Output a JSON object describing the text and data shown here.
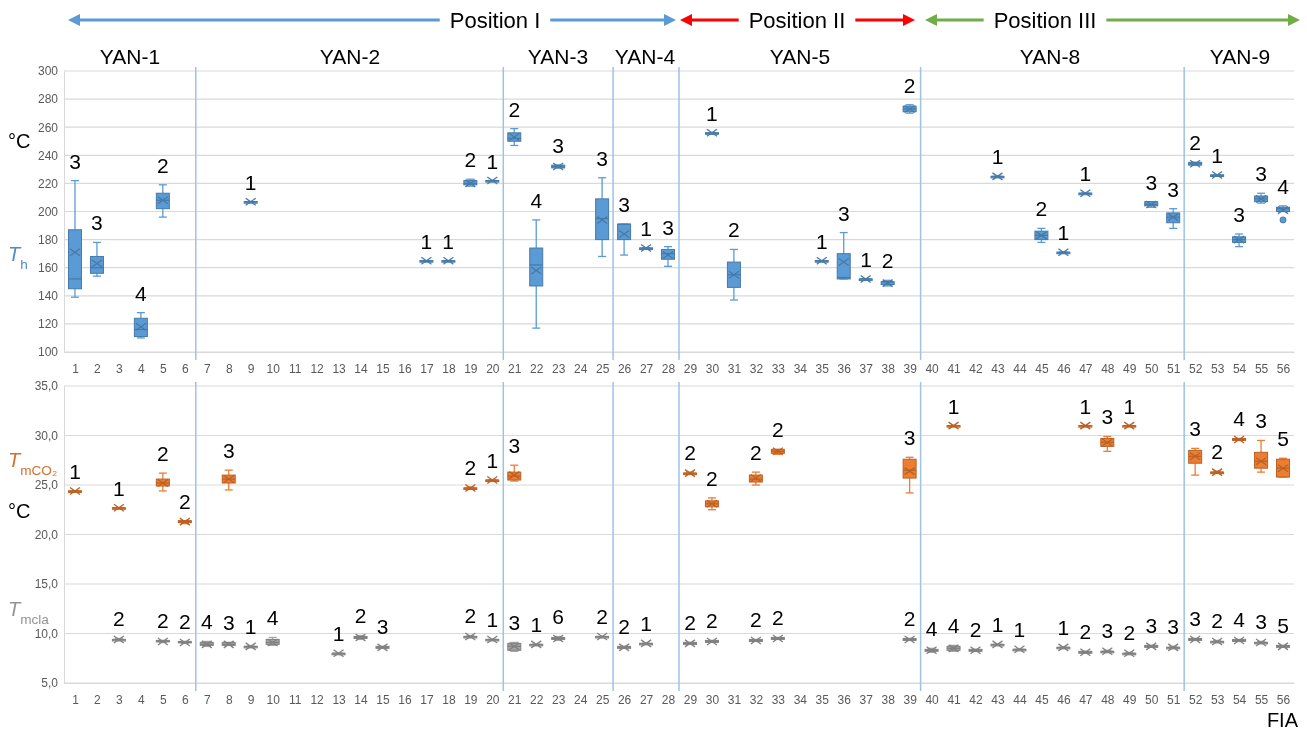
{
  "chart_data": [
    {
      "type": "box",
      "xlim": [
        0.5,
        56.5
      ],
      "xticks": [
        1,
        2,
        3,
        4,
        5,
        6,
        7,
        8,
        9,
        10,
        11,
        12,
        13,
        14,
        15,
        16,
        17,
        18,
        19,
        20,
        21,
        22,
        23,
        24,
        25,
        26,
        27,
        28,
        29,
        30,
        31,
        32,
        33,
        34,
        35,
        36,
        37,
        38,
        39,
        40,
        41,
        42,
        43,
        44,
        45,
        46,
        47,
        48,
        49,
        50,
        51,
        52,
        53,
        54,
        55,
        56
      ],
      "ylim": [
        100,
        300
      ],
      "yticks": [
        100,
        120,
        140,
        160,
        180,
        200,
        220,
        240,
        260,
        280,
        300
      ],
      "grid": "y",
      "ylabel": "°C",
      "series": [
        {
          "name": "T$_{h}$",
          "color": "#5b9bd5",
          "x": [
            1,
            2,
            4,
            5,
            9,
            17,
            18,
            19,
            20,
            21,
            22,
            23,
            25,
            26,
            27,
            28,
            30,
            31,
            35,
            36,
            37,
            38,
            39,
            43,
            45,
            46,
            47,
            50,
            51,
            52,
            53,
            54,
            55,
            56
          ],
          "boxes": [
            {
              "low": 139,
              "q1": 145,
              "median": 152,
              "q3": 187,
              "high": 222,
              "mean": 171
            },
            {
              "low": 154,
              "q1": 156,
              "median": 160,
              "q3": 168,
              "high": 178,
              "mean": 163
            },
            {
              "low": 110,
              "q1": 111,
              "median": 116,
              "q3": 124,
              "high": 128,
              "mean": 118
            },
            {
              "low": 196,
              "q1": 202,
              "median": 208,
              "q3": 213,
              "high": 219,
              "mean": 208
            },
            {
              "low": 207,
              "q1": 207,
              "median": 207,
              "q3": 207,
              "high": 207,
              "mean": 207
            },
            {
              "low": 165,
              "q1": 165,
              "median": 165,
              "q3": 165,
              "high": 165,
              "mean": 165
            },
            {
              "low": 165,
              "q1": 165,
              "median": 165,
              "q3": 165,
              "high": 165,
              "mean": 165
            },
            {
              "low": 218,
              "q1": 219,
              "median": 220,
              "q3": 222,
              "high": 223,
              "mean": 220
            },
            {
              "low": 222,
              "q1": 222,
              "median": 222,
              "q3": 222,
              "high": 222,
              "mean": 222
            },
            {
              "low": 247,
              "q1": 250,
              "median": 252,
              "q3": 256,
              "high": 259,
              "mean": 253
            },
            {
              "low": 117,
              "q1": 147,
              "median": 162,
              "q3": 174,
              "high": 194,
              "mean": 158
            },
            {
              "low": 231,
              "q1": 231,
              "median": 232,
              "q3": 233,
              "high": 233,
              "mean": 232
            },
            {
              "low": 168,
              "q1": 180,
              "median": 195,
              "q3": 209,
              "high": 224,
              "mean": 194
            },
            {
              "low": 169,
              "q1": 180,
              "median": 191,
              "q3": 191,
              "high": 191,
              "mean": 184
            },
            {
              "low": 174,
              "q1": 174,
              "median": 174,
              "q3": 174,
              "high": 174,
              "mean": 174
            },
            {
              "low": 161,
              "q1": 166,
              "median": 170,
              "q3": 173,
              "high": 175,
              "mean": 169
            },
            {
              "low": 256,
              "q1": 256,
              "median": 256,
              "q3": 256,
              "high": 256,
              "mean": 256
            },
            {
              "low": 137,
              "q1": 146,
              "median": 155,
              "q3": 164,
              "high": 173,
              "mean": 155
            },
            {
              "low": 165,
              "q1": 165,
              "median": 165,
              "q3": 165,
              "high": 165,
              "mean": 165
            },
            {
              "low": 152,
              "q1": 152,
              "median": 153,
              "q3": 170,
              "high": 185,
              "mean": 164
            },
            {
              "low": 152,
              "q1": 152,
              "median": 152,
              "q3": 152,
              "high": 152,
              "mean": 152
            },
            {
              "low": 147,
              "q1": 148,
              "median": 150,
              "q3": 150,
              "high": 151,
              "mean": 149
            },
            {
              "low": 270,
              "q1": 271,
              "median": 273,
              "q3": 275,
              "high": 276,
              "mean": 273
            },
            {
              "low": 225,
              "q1": 225,
              "median": 225,
              "q3": 225,
              "high": 225,
              "mean": 225
            },
            {
              "low": 178,
              "q1": 180,
              "median": 183,
              "q3": 186,
              "high": 188,
              "mean": 183
            },
            {
              "low": 171,
              "q1": 171,
              "median": 171,
              "q3": 171,
              "high": 171,
              "mean": 171
            },
            {
              "low": 213,
              "q1": 213,
              "median": 213,
              "q3": 213,
              "high": 213,
              "mean": 213
            },
            {
              "low": 203,
              "q1": 204,
              "median": 205,
              "q3": 207,
              "high": 207,
              "mean": 205
            },
            {
              "low": 188,
              "q1": 192,
              "median": 196,
              "q3": 199,
              "high": 202,
              "mean": 196
            },
            {
              "low": 233,
              "q1": 233,
              "median": 234,
              "q3": 235,
              "high": 235,
              "mean": 234
            },
            {
              "low": 226,
              "q1": 226,
              "median": 226,
              "q3": 226,
              "high": 226,
              "mean": 226
            },
            {
              "low": 175,
              "q1": 178,
              "median": 180,
              "q3": 182,
              "high": 184,
              "mean": 180
            },
            {
              "low": 206,
              "q1": 207,
              "median": 209,
              "q3": 211,
              "high": 213,
              "mean": 209
            },
            {
              "low": 200,
              "q1": 200,
              "median": 202,
              "q3": 203,
              "high": 204,
              "mean": 201,
              "outliers": [
                194
              ]
            }
          ]
        }
      ],
      "ref_lines": [
        {
          "axis": "x",
          "value": 6.5,
          "color": "#9dc3e6"
        },
        {
          "axis": "x",
          "value": 20.5,
          "color": "#9dc3e6"
        },
        {
          "axis": "x",
          "value": 25.5,
          "color": "#9dc3e6"
        },
        {
          "axis": "x",
          "value": 28.5,
          "color": "#9dc3e6"
        },
        {
          "axis": "x",
          "value": 39.5,
          "color": "#9dc3e6"
        },
        {
          "axis": "x",
          "value": 51.5,
          "color": "#9dc3e6"
        }
      ],
      "annotations": [
        "Position I",
        "Position II",
        "Position III",
        "YAN-1",
        "YAN-2",
        "YAN-3",
        "YAN-4",
        "YAN-5",
        "YAN-8",
        "YAN-9",
        "1",
        "1",
        {
          "text": "3",
          "x": 1,
          "y": 222
        },
        {
          "text": "3",
          "x": 2,
          "y": 178
        },
        {
          "text": "4",
          "x": 4,
          "y": 128
        },
        {
          "text": "2",
          "x": 5,
          "y": 219
        },
        {
          "text": "1",
          "x": 9,
          "y": 207
        },
        {
          "text": "1",
          "x": 17,
          "y": 165
        },
        {
          "text": "2",
          "x": 19,
          "y": 223
        },
        {
          "text": "1",
          "x": 20,
          "y": 222
        },
        {
          "text": "2",
          "x": 21,
          "y": 259
        },
        {
          "text": "4",
          "x": 22,
          "y": 194
        },
        {
          "text": "3",
          "x": 23,
          "y": 233
        },
        {
          "text": "3",
          "x": 25,
          "y": 224
        },
        {
          "text": "3",
          "x": 26,
          "y": 191
        },
        {
          "text": "1",
          "x": 27,
          "y": 174
        },
        {
          "text": "3",
          "x": 28,
          "y": 175
        },
        {
          "text": "1",
          "x": 30,
          "y": 256
        },
        {
          "text": "2",
          "x": 31,
          "y": 173
        },
        {
          "text": "1",
          "x": 35,
          "y": 165
        },
        {
          "text": "3",
          "x": 36,
          "y": 185
        },
        {
          "text": "2",
          "x": 38,
          "y": 151
        },
        {
          "text": "2",
          "x": 39,
          "y": 276
        },
        {
          "text": "1",
          "x": 43,
          "y": 225
        },
        {
          "text": "2",
          "x": 45,
          "y": 188
        },
        {
          "text": "1",
          "x": 46,
          "y": 171
        },
        {
          "text": "1",
          "x": 47,
          "y": 213
        },
        {
          "text": "3",
          "x": 50,
          "y": 207
        },
        {
          "text": "3",
          "x": 51,
          "y": 202
        },
        {
          "text": "2",
          "x": 52,
          "y": 235
        },
        {
          "text": "1",
          "x": 53,
          "y": 226
        },
        {
          "text": "3",
          "x": 54,
          "y": 184
        },
        {
          "text": "3",
          "x": 55,
          "y": 213
        },
        {
          "text": "4",
          "x": 56,
          "y": 204
        }
      ]
    },
    {
      "type": "box",
      "xlim": [
        0.5,
        56.5
      ],
      "xticks": [
        1,
        2,
        3,
        4,
        5,
        6,
        7,
        8,
        9,
        10,
        11,
        12,
        13,
        14,
        15,
        16,
        17,
        18,
        19,
        20,
        21,
        22,
        23,
        24,
        25,
        26,
        27,
        28,
        29,
        30,
        31,
        32,
        33,
        34,
        35,
        36,
        37,
        38,
        39,
        40,
        41,
        42,
        43,
        44,
        45,
        46,
        47,
        48,
        49,
        50,
        51,
        52,
        53,
        54,
        55,
        56
      ],
      "ylim": [
        5,
        35
      ],
      "yticks": [
        {
          "value": 5,
          "label": "5,0"
        },
        {
          "value": 10,
          "label": "10,0"
        },
        {
          "value": 15,
          "label": "15,0"
        },
        {
          "value": 20,
          "label": "20,0"
        },
        {
          "value": 25,
          "label": "25,0"
        },
        {
          "value": 30,
          "label": "30,0"
        },
        {
          "value": 35,
          "label": "35,0"
        }
      ],
      "grid": "y",
      "ylabel": "°C",
      "xlabel": "FIA",
      "series": [
        {
          "name": "T$_{mCO₂}$",
          "color": "#ed7d31",
          "x": [
            1,
            3,
            5,
            6,
            8,
            19,
            20,
            21,
            29,
            30,
            32,
            33,
            39,
            41,
            47,
            48,
            49,
            52,
            53,
            54,
            55,
            56
          ],
          "boxes": [
            {
              "low": 24.4,
              "q1": 24.4,
              "median": 24.4,
              "q3": 24.4,
              "high": 24.4,
              "mean": 24.4
            },
            {
              "low": 22.7,
              "q1": 22.7,
              "median": 22.7,
              "q3": 22.7,
              "high": 22.7,
              "mean": 22.7
            },
            {
              "low": 24.4,
              "q1": 24.9,
              "median": 25.2,
              "q3": 25.6,
              "high": 26.2,
              "mean": 25.2
            },
            {
              "low": 21.1,
              "q1": 21.2,
              "median": 21.3,
              "q3": 21.4,
              "high": 21.4,
              "mean": 21.3
            },
            {
              "low": 24.5,
              "q1": 25.2,
              "median": 25.6,
              "q3": 26,
              "high": 26.5,
              "mean": 25.6
            },
            {
              "low": 24.6,
              "q1": 24.6,
              "median": 24.7,
              "q3": 24.7,
              "high": 24.8,
              "mean": 24.7
            },
            {
              "low": 25.5,
              "q1": 25.5,
              "median": 25.5,
              "q3": 25.5,
              "high": 25.5,
              "mean": 25.5
            },
            {
              "low": 25.4,
              "q1": 25.5,
              "median": 25.9,
              "q3": 26.3,
              "high": 27,
              "mean": 26
            },
            {
              "low": 26.1,
              "q1": 26.1,
              "median": 26.2,
              "q3": 26.2,
              "high": 26.3,
              "mean": 26.2
            },
            {
              "low": 22.5,
              "q1": 22.8,
              "median": 23.1,
              "q3": 23.4,
              "high": 23.7,
              "mean": 23.1
            },
            {
              "low": 25,
              "q1": 25.3,
              "median": 25.6,
              "q3": 26,
              "high": 26.3,
              "mean": 25.7
            },
            {
              "low": 28.1,
              "q1": 28.2,
              "median": 28.4,
              "q3": 28.6,
              "high": 28.6,
              "mean": 28.4
            },
            {
              "low": 24.2,
              "q1": 25.7,
              "median": 26.5,
              "q3": 27.6,
              "high": 27.8,
              "mean": 26.4
            },
            {
              "low": 31,
              "q1": 31,
              "median": 31,
              "q3": 31,
              "high": 31,
              "mean": 31
            },
            {
              "low": 31,
              "q1": 31,
              "median": 31,
              "q3": 31,
              "high": 31,
              "mean": 31
            },
            {
              "low": 28.4,
              "q1": 28.9,
              "median": 29.3,
              "q3": 29.7,
              "high": 29.9,
              "mean": 29.3
            },
            {
              "low": 31,
              "q1": 31,
              "median": 31,
              "q3": 31,
              "high": 31,
              "mean": 31
            },
            {
              "low": 26,
              "q1": 27.2,
              "median": 27.9,
              "q3": 28.5,
              "high": 28.7,
              "mean": 27.9
            },
            {
              "low": 26.2,
              "q1": 26.2,
              "median": 26.3,
              "q3": 26.3,
              "high": 26.4,
              "mean": 26.3
            },
            {
              "low": 29.5,
              "q1": 29.5,
              "median": 29.6,
              "q3": 29.7,
              "high": 29.7,
              "mean": 29.6
            },
            {
              "low": 26.3,
              "q1": 26.7,
              "median": 27.4,
              "q3": 28.3,
              "high": 29.5,
              "mean": 27.4
            },
            {
              "low": 25.8,
              "q1": 25.8,
              "median": 26.7,
              "q3": 27.6,
              "high": 27.7,
              "mean": 26.7
            }
          ]
        },
        {
          "name": "T$_{mcla}$",
          "color": "#a5a5a5",
          "x": [
            3,
            5,
            6,
            7,
            8,
            9,
            10,
            13,
            14,
            15,
            19,
            20,
            21,
            22,
            23,
            25,
            26,
            27,
            29,
            30,
            32,
            33,
            39,
            40,
            41,
            42,
            43,
            44,
            46,
            47,
            48,
            49,
            50,
            51,
            52,
            53,
            54,
            55,
            56
          ],
          "boxes": [
            {
              "low": 9.3,
              "q1": 9.3,
              "median": 9.4,
              "q3": 9.4,
              "high": 9.5,
              "mean": 9.4
            },
            {
              "low": 9.1,
              "q1": 9.2,
              "median": 9.2,
              "q3": 9.3,
              "high": 9.3,
              "mean": 9.2
            },
            {
              "low": 9,
              "q1": 9.1,
              "median": 9.1,
              "q3": 9.2,
              "high": 9.2,
              "mean": 9.1
            },
            {
              "low": 8.7,
              "q1": 8.8,
              "median": 8.9,
              "q3": 9.1,
              "high": 9.2,
              "mean": 8.9
            },
            {
              "low": 8.8,
              "q1": 8.8,
              "median": 8.9,
              "q3": 9.1,
              "high": 9.1,
              "mean": 8.9
            },
            {
              "low": 8.7,
              "q1": 8.7,
              "median": 8.7,
              "q3": 8.7,
              "high": 8.7,
              "mean": 8.7
            },
            {
              "low": 8.8,
              "q1": 8.9,
              "median": 9.1,
              "q3": 9.4,
              "high": 9.6,
              "mean": 9.1
            },
            {
              "low": 8,
              "q1": 8,
              "median": 8,
              "q3": 8,
              "high": 8,
              "mean": 8
            },
            {
              "low": 9.4,
              "q1": 9.5,
              "median": 9.6,
              "q3": 9.7,
              "high": 9.8,
              "mean": 9.6
            },
            {
              "low": 8.5,
              "q1": 8.5,
              "median": 8.6,
              "q3": 8.7,
              "high": 8.7,
              "mean": 8.6
            },
            {
              "low": 9.6,
              "q1": 9.6,
              "median": 9.7,
              "q3": 9.7,
              "high": 9.8,
              "mean": 9.7
            },
            {
              "low": 9.4,
              "q1": 9.4,
              "median": 9.4,
              "q3": 9.4,
              "high": 9.4,
              "mean": 9.4
            },
            {
              "low": 8.2,
              "q1": 8.3,
              "median": 8.7,
              "q3": 9,
              "high": 9.1,
              "mean": 8.7
            },
            {
              "low": 8.9,
              "q1": 8.9,
              "median": 8.9,
              "q3": 8.9,
              "high": 8.9,
              "mean": 8.9
            },
            {
              "low": 9.3,
              "q1": 9.4,
              "median": 9.5,
              "q3": 9.6,
              "high": 9.7,
              "mean": 9.5
            },
            {
              "low": 9.6,
              "q1": 9.6,
              "median": 9.7,
              "q3": 9.7,
              "high": 9.7,
              "mean": 9.7
            },
            {
              "low": 8.5,
              "q1": 8.5,
              "median": 8.6,
              "q3": 8.7,
              "high": 8.7,
              "mean": 8.6
            },
            {
              "low": 9,
              "q1": 9,
              "median": 9,
              "q3": 9,
              "high": 9,
              "mean": 9
            },
            {
              "low": 8.9,
              "q1": 8.9,
              "median": 9,
              "q3": 9.1,
              "high": 9.1,
              "mean": 9
            },
            {
              "low": 9.1,
              "q1": 9.1,
              "median": 9.2,
              "q3": 9.3,
              "high": 9.3,
              "mean": 9.2
            },
            {
              "low": 9.2,
              "q1": 9.2,
              "median": 9.3,
              "q3": 9.4,
              "high": 9.4,
              "mean": 9.3
            },
            {
              "low": 9.4,
              "q1": 9.4,
              "median": 9.5,
              "q3": 9.6,
              "high": 9.6,
              "mean": 9.5
            },
            {
              "low": 9.3,
              "q1": 9.3,
              "median": 9.4,
              "q3": 9.5,
              "high": 9.5,
              "mean": 9.4
            },
            {
              "low": 8.1,
              "q1": 8.2,
              "median": 8.3,
              "q3": 8.4,
              "high": 8.5,
              "mean": 8.3
            },
            {
              "low": 8.2,
              "q1": 8.3,
              "median": 8.5,
              "q3": 8.7,
              "high": 8.8,
              "mean": 8.5
            },
            {
              "low": 8.2,
              "q1": 8.2,
              "median": 8.3,
              "q3": 8.4,
              "high": 8.4,
              "mean": 8.3
            },
            {
              "low": 8.9,
              "q1": 8.9,
              "median": 8.9,
              "q3": 8.9,
              "high": 8.9,
              "mean": 8.9
            },
            {
              "low": 8.4,
              "q1": 8.4,
              "median": 8.4,
              "q3": 8.4,
              "high": 8.4,
              "mean": 8.4
            },
            {
              "low": 8.6,
              "q1": 8.6,
              "median": 8.6,
              "q3": 8.6,
              "high": 8.6,
              "mean": 8.6
            },
            {
              "low": 8,
              "q1": 8,
              "median": 8.1,
              "q3": 8.2,
              "high": 8.2,
              "mean": 8.1
            },
            {
              "low": 8.1,
              "q1": 8.1,
              "median": 8.2,
              "q3": 8.2,
              "high": 8.3,
              "mean": 8.2
            },
            {
              "low": 7.9,
              "q1": 7.9,
              "median": 8,
              "q3": 8,
              "high": 8.1,
              "mean": 8
            },
            {
              "low": 8.6,
              "q1": 8.6,
              "median": 8.7,
              "q3": 8.8,
              "high": 8.8,
              "mean": 8.7
            },
            {
              "low": 8.5,
              "q1": 8.5,
              "median": 8.6,
              "q3": 8.6,
              "high": 8.7,
              "mean": 8.6
            },
            {
              "low": 9.3,
              "q1": 9.3,
              "median": 9.4,
              "q3": 9.5,
              "high": 9.5,
              "mean": 9.4
            },
            {
              "low": 9.1,
              "q1": 9.1,
              "median": 9.2,
              "q3": 9.2,
              "high": 9.3,
              "mean": 9.2
            },
            {
              "low": 9.2,
              "q1": 9.2,
              "median": 9.3,
              "q3": 9.4,
              "high": 9.4,
              "mean": 9.3
            },
            {
              "low": 9,
              "q1": 9,
              "median": 9.1,
              "q3": 9.1,
              "high": 9.2,
              "mean": 9.1
            },
            {
              "low": 8.6,
              "q1": 8.6,
              "median": 8.7,
              "q3": 8.8,
              "high": 8.8,
              "mean": 8.7
            }
          ]
        }
      ],
      "ref_lines": [
        {
          "axis": "x",
          "value": 6.5,
          "color": "#9dc3e6"
        },
        {
          "axis": "x",
          "value": 20.5,
          "color": "#9dc3e6"
        },
        {
          "axis": "x",
          "value": 25.5,
          "color": "#9dc3e6"
        },
        {
          "axis": "x",
          "value": 28.5,
          "color": "#9dc3e6"
        },
        {
          "axis": "x",
          "value": 39.5,
          "color": "#9dc3e6"
        },
        {
          "axis": "x",
          "value": 51.5,
          "color": "#9dc3e6"
        }
      ],
      "annotations": [
        {
          "text": "1",
          "x": 1,
          "y": 24.4
        },
        {
          "text": "1",
          "x": 3,
          "y": 22.7
        },
        {
          "text": "2",
          "x": 5,
          "y": 26.2
        },
        {
          "text": "2",
          "x": 6,
          "y": 21.4
        },
        {
          "text": "3",
          "x": 8,
          "y": 26.5
        },
        {
          "text": "2",
          "x": 19,
          "y": 24.8
        },
        {
          "text": "1",
          "x": 20,
          "y": 25.5
        },
        {
          "text": "3",
          "x": 21,
          "y": 27
        },
        {
          "text": "2",
          "x": 29,
          "y": 26.3
        },
        {
          "text": "2",
          "x": 30,
          "y": 23.7
        },
        {
          "text": "2",
          "x": 32,
          "y": 26.3
        },
        {
          "text": "2",
          "x": 33,
          "y": 28.6
        },
        {
          "text": "3",
          "x": 39,
          "y": 27.8
        },
        {
          "text": "1",
          "x": 41,
          "y": 31
        },
        {
          "text": "1",
          "x": 47,
          "y": 31
        },
        {
          "text": "3",
          "x": 48,
          "y": 29.9
        },
        {
          "text": "1",
          "x": 49,
          "y": 31
        },
        {
          "text": "3",
          "x": 52,
          "y": 28.7
        },
        {
          "text": "2",
          "x": 53,
          "y": 26.4
        },
        {
          "text": "4",
          "x": 54,
          "y": 29.7
        },
        {
          "text": "3",
          "x": 55,
          "y": 29.5
        },
        {
          "text": "5",
          "x": 56,
          "y": 27.7
        },
        {
          "text": "2",
          "x": 3,
          "y": 9.5
        },
        {
          "text": "2",
          "x": 5,
          "y": 9.3
        },
        {
          "text": "2",
          "x": 6,
          "y": 9.2
        },
        {
          "text": "4",
          "x": 7,
          "y": 9.2
        },
        {
          "text": "3",
          "x": 8,
          "y": 9.1
        },
        {
          "text": "1",
          "x": 9,
          "y": 8.7
        },
        {
          "text": "4",
          "x": 10,
          "y": 9.6
        },
        {
          "text": "1",
          "x": 13,
          "y": 8
        },
        {
          "text": "2",
          "x": 14,
          "y": 9.8
        },
        {
          "text": "3",
          "x": 15,
          "y": 8.7
        },
        {
          "text": "2",
          "x": 19,
          "y": 9.8
        },
        {
          "text": "1",
          "x": 20,
          "y": 9.4
        },
        {
          "text": "3",
          "x": 21,
          "y": 9.1
        },
        {
          "text": "1",
          "x": 22,
          "y": 8.9
        },
        {
          "text": "6",
          "x": 23,
          "y": 9.7
        },
        {
          "text": "2",
          "x": 25,
          "y": 9.7
        },
        {
          "text": "2",
          "x": 26,
          "y": 8.7
        },
        {
          "text": "1",
          "x": 27,
          "y": 9
        },
        {
          "text": "2",
          "x": 29,
          "y": 9.1
        },
        {
          "text": "2",
          "x": 30,
          "y": 9.3
        },
        {
          "text": "2",
          "x": 32,
          "y": 9.4
        },
        {
          "text": "2",
          "x": 33,
          "y": 9.6
        },
        {
          "text": "2",
          "x": 39,
          "y": 9.5
        },
        {
          "text": "4",
          "x": 40,
          "y": 8.5
        },
        {
          "text": "4",
          "x": 41,
          "y": 8.8
        },
        {
          "text": "2",
          "x": 42,
          "y": 8.4
        },
        {
          "text": "1",
          "x": 43,
          "y": 8.9
        },
        {
          "text": "1",
          "x": 44,
          "y": 8.4
        },
        {
          "text": "1",
          "x": 46,
          "y": 8.6
        },
        {
          "text": "2",
          "x": 47,
          "y": 8.2
        },
        {
          "text": "3",
          "x": 48,
          "y": 8.3
        },
        {
          "text": "2",
          "x": 49,
          "y": 8.1
        },
        {
          "text": "3",
          "x": 50,
          "y": 8.8
        },
        {
          "text": "3",
          "x": 51,
          "y": 8.7
        },
        {
          "text": "3",
          "x": 52,
          "y": 9.5
        },
        {
          "text": "2",
          "x": 53,
          "y": 9.3
        },
        {
          "text": "4",
          "x": 54,
          "y": 9.4
        },
        {
          "text": "3",
          "x": 55,
          "y": 9.2
        },
        {
          "text": "5",
          "x": 56,
          "y": 8.8
        }
      ]
    }
  ]
}
